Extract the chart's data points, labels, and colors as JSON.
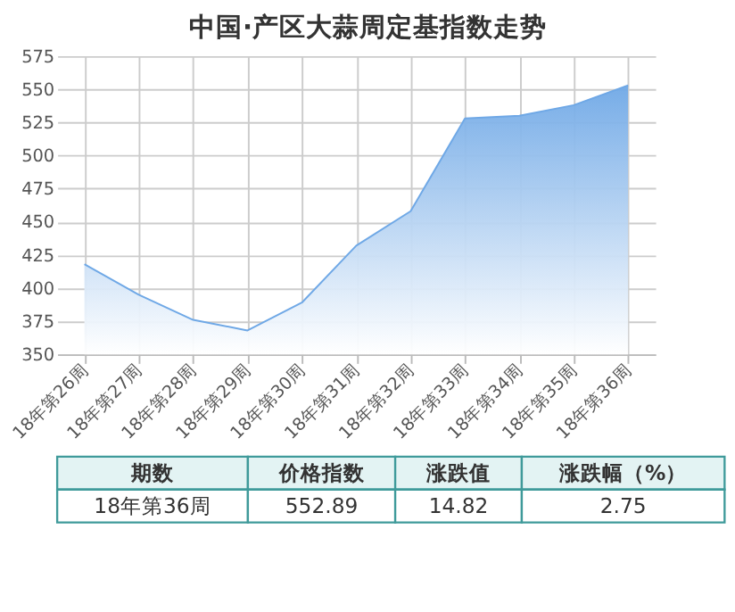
{
  "chart_data": {
    "type": "area",
    "title": "中国·产区大蒜周定基指数走势",
    "categories": [
      "18年第26周",
      "18年第27周",
      "18年第28周",
      "18年第29周",
      "18年第30周",
      "18年第31周",
      "18年第32周",
      "18年第33周",
      "18年第34周",
      "18年第35周",
      "18年第36周"
    ],
    "series": [
      {
        "color": "#6fa8e6",
        "values": [
          418,
          395,
          376,
          368,
          389,
          432,
          458,
          528,
          530,
          538,
          552.89
        ]
      }
    ],
    "ylim": [
      350,
      575
    ],
    "yticks": [
      350,
      375,
      400,
      425,
      450,
      475,
      500,
      525,
      550,
      575
    ],
    "grid": true,
    "annotations": [
      "期数",
      "价格指数",
      "涨跌值",
      "涨跌幅（%）",
      "18年第36周",
      "552.89",
      "14.82",
      "2.75"
    ]
  }
}
